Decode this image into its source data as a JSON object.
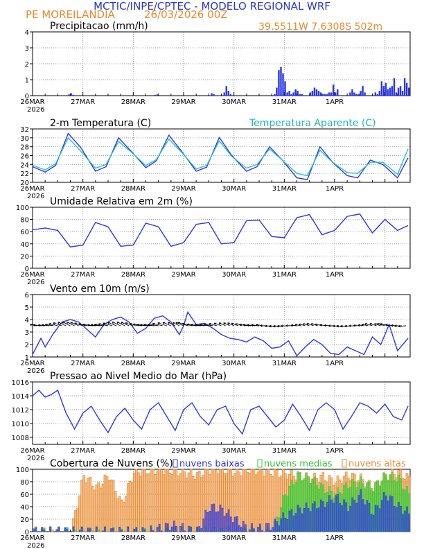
{
  "header": {
    "title": "MCTIC/INPE/CPTEC - MODELO REGIONAL WRF",
    "location": "PE MOREILANDIA",
    "run": "26/03/2026 00Z",
    "coords": "39.5511W 7.6308S 502m"
  },
  "colors": {
    "title": "#2a36c8",
    "orange": "#e8892e",
    "blue": "#2a36e8",
    "cyan": "#22c4c4",
    "green": "#33cc33",
    "grid": "#9a9a9a"
  },
  "x_axis": {
    "labels": [
      "26MAR",
      "27MAR",
      "28MAR",
      "29MAR",
      "30MAR",
      "31MAR",
      "1APR"
    ],
    "year_label": "2026"
  },
  "chart_data": [
    {
      "id": "precip",
      "type": "bar",
      "title": "Precipitacao (mm/h)",
      "ylim": [
        0,
        4
      ],
      "yticks": [
        0,
        1,
        2,
        3,
        4
      ],
      "hours": [
        17,
        18,
        19,
        58,
        59,
        85,
        86,
        91,
        92,
        93,
        94,
        115,
        116,
        117,
        118,
        119,
        120,
        121,
        122,
        123,
        124,
        125,
        126,
        127,
        128,
        132,
        133,
        134,
        135,
        136,
        137,
        138,
        139,
        140,
        141,
        142,
        143,
        144,
        145,
        151,
        152,
        153,
        154,
        155,
        156,
        157,
        158,
        163,
        164,
        165,
        166,
        167,
        168,
        169,
        170,
        171,
        172,
        173,
        174,
        175,
        176,
        177,
        178,
        179
      ],
      "values": [
        0.08,
        0.15,
        0.05,
        0.05,
        0.08,
        0.15,
        0.1,
        0.2,
        0.6,
        0.3,
        0.1,
        0.1,
        0.5,
        1.6,
        1.8,
        1.4,
        0.9,
        0.2,
        0.3,
        0.1,
        0.2,
        0.4,
        0.3,
        0.1,
        0.1,
        0.2,
        0.3,
        0.5,
        0.4,
        0.3,
        0.2,
        0.1,
        0.1,
        0.1,
        0.2,
        0.2,
        0.7,
        0.2,
        0.4,
        0.2,
        0.4,
        0.2,
        0.1,
        0.1,
        0.3,
        0.6,
        0.2,
        0.2,
        0.1,
        0.3,
        0.9,
        0.6,
        0.8,
        0.4,
        0.5,
        0.6,
        1.1,
        0.2,
        0.5,
        0.6,
        0.3,
        1.1,
        0.8,
        0.5
      ]
    },
    {
      "id": "temp",
      "type": "line",
      "title": "2-m Temperatura (C)",
      "legend_label": "Temperatura Aparente (C)",
      "ylim": [
        20,
        32
      ],
      "yticks": [
        20,
        22,
        24,
        26,
        28,
        30,
        32
      ],
      "series": [
        {
          "name": "Temperatura (C)",
          "x": [
            0,
            6,
            11,
            17,
            23,
            30,
            35,
            41,
            47,
            54,
            59,
            65,
            71,
            78,
            83,
            89,
            95,
            102,
            107,
            113,
            119,
            126,
            131,
            137,
            143,
            150,
            155,
            161,
            167,
            174,
            179
          ],
          "y": [
            23.5,
            22.3,
            23.8,
            31.0,
            27.8,
            22.5,
            23.5,
            30.0,
            27.0,
            23.3,
            24.8,
            30.6,
            27.0,
            22.5,
            23.4,
            30.1,
            26.0,
            22.5,
            23.5,
            28.0,
            25.0,
            21.0,
            20.6,
            28.0,
            24.5,
            21.5,
            21.0,
            25.0,
            24.0,
            21.0,
            25.5
          ]
        },
        {
          "name": "Temperatura Aparente (C)",
          "x": [
            0,
            6,
            11,
            17,
            23,
            30,
            35,
            41,
            47,
            54,
            59,
            65,
            71,
            78,
            83,
            89,
            95,
            102,
            107,
            113,
            119,
            126,
            131,
            137,
            143,
            150,
            155,
            161,
            167,
            174,
            179
          ],
          "y": [
            23.8,
            22.8,
            24.2,
            30.0,
            27.0,
            23.2,
            24.0,
            29.2,
            26.8,
            23.8,
            25.1,
            29.7,
            26.8,
            23.0,
            23.8,
            29.3,
            25.8,
            23.2,
            24.0,
            27.5,
            25.0,
            22.0,
            21.5,
            27.2,
            24.5,
            22.2,
            22.0,
            24.5,
            24.5,
            21.8,
            27.5
          ]
        }
      ]
    },
    {
      "id": "rh",
      "type": "line",
      "title": "Umidade Relativa em 2m (%)",
      "ylim": [
        0,
        100
      ],
      "yticks": [
        0,
        20,
        40,
        60,
        80,
        100
      ],
      "series": [
        {
          "name": "Umidade Relativa (%)",
          "x": [
            0,
            6,
            12,
            18,
            24,
            30,
            36,
            42,
            48,
            54,
            60,
            66,
            72,
            78,
            84,
            90,
            96,
            102,
            108,
            114,
            120,
            126,
            132,
            138,
            144,
            150,
            156,
            162,
            168,
            174,
            179
          ],
          "y": [
            63,
            66,
            62,
            35,
            38,
            75,
            68,
            36,
            38,
            74,
            68,
            36,
            42,
            72,
            75,
            40,
            42,
            78,
            79,
            52,
            50,
            83,
            88,
            55,
            62,
            85,
            89,
            58,
            80,
            62,
            70
          ]
        }
      ]
    },
    {
      "id": "wind",
      "type": "line",
      "title": "Vento em 10m (m/s)",
      "ylim": [
        1,
        6
      ],
      "yticks": [
        1,
        2,
        3,
        4,
        5,
        6
      ],
      "series": [
        {
          "name": "Vento em 10m (m/s)",
          "x": [
            0,
            4,
            6,
            10,
            14,
            18,
            22,
            26,
            30,
            34,
            38,
            42,
            46,
            50,
            54,
            58,
            62,
            66,
            70,
            72,
            74,
            78,
            82,
            86,
            90,
            94,
            98,
            102,
            106,
            110,
            114,
            118,
            122,
            126,
            130,
            134,
            138,
            142,
            146,
            150,
            154,
            158,
            162,
            166,
            170,
            174,
            179
          ],
          "y": [
            1.2,
            2.5,
            1.8,
            2.9,
            3.8,
            4.0,
            3.8,
            3.2,
            2.6,
            3.6,
            4.0,
            4.2,
            3.8,
            2.9,
            3.3,
            4.1,
            4.3,
            3.8,
            2.8,
            3.5,
            4.6,
            3.6,
            3.7,
            3.3,
            2.8,
            2.5,
            2.4,
            2.2,
            2.6,
            2.3,
            1.7,
            1.8,
            2.3,
            1.1,
            1.8,
            2.4,
            2.0,
            1.3,
            1.2,
            1.8,
            1.5,
            1.2,
            2.6,
            2.0,
            3.6,
            1.5,
            2.5
          ]
        }
      ]
    },
    {
      "id": "pressure",
      "type": "line",
      "title": "Pressao ao Nivel Medio do Mar (hPa)",
      "ylim": [
        1007,
        1016
      ],
      "yticks": [
        1008,
        1010,
        1012,
        1014,
        1016
      ],
      "series": [
        {
          "name": "Pressao (hPa)",
          "x": [
            0,
            3,
            6,
            9,
            12,
            16,
            20,
            24,
            28,
            32,
            36,
            40,
            44,
            48,
            52,
            56,
            60,
            64,
            68,
            72,
            76,
            80,
            84,
            88,
            92,
            96,
            100,
            104,
            108,
            112,
            116,
            120,
            124,
            128,
            132,
            136,
            140,
            144,
            148,
            152,
            156,
            160,
            164,
            168,
            172,
            176,
            179
          ],
          "y": [
            1014.0,
            1014.8,
            1013.8,
            1014.2,
            1014.8,
            1011.5,
            1009.2,
            1011.5,
            1012.5,
            1010.5,
            1008.7,
            1011.0,
            1012.2,
            1010.5,
            1009.2,
            1012.0,
            1013.0,
            1011.0,
            1009.0,
            1012.0,
            1013.0,
            1011.0,
            1009.8,
            1012.0,
            1012.5,
            1010.0,
            1008.5,
            1012.0,
            1012.5,
            1011.0,
            1009.5,
            1010.5,
            1012.8,
            1011.0,
            1009.0,
            1012.0,
            1013.0,
            1012.0,
            1009.2,
            1011.0,
            1013.0,
            1012.5,
            1011.5,
            1012.8,
            1011.0,
            1010.5,
            1012.5
          ]
        }
      ]
    },
    {
      "id": "clouds",
      "type": "bar",
      "title": "Cobertura de Nuvens (%)",
      "ylim": [
        0,
        100
      ],
      "yticks": [
        0,
        20,
        40,
        60,
        80,
        100
      ],
      "series": [
        {
          "name": "nuvens baixas",
          "x": [
            0,
            6,
            12,
            18,
            24,
            30,
            36,
            42,
            48,
            54,
            60,
            66,
            72,
            78,
            84,
            90,
            96,
            102,
            108,
            114,
            120,
            126,
            132,
            138,
            144,
            150,
            156,
            162,
            168,
            174,
            179
          ],
          "y": [
            0,
            0,
            0,
            0,
            0,
            0,
            0,
            0,
            0,
            0,
            5,
            10,
            5,
            0,
            40,
            35,
            20,
            5,
            5,
            10,
            25,
            35,
            40,
            45,
            55,
            40,
            60,
            30,
            60,
            40,
            30
          ]
        },
        {
          "name": "nuvens medias",
          "x": [
            0,
            6,
            12,
            18,
            24,
            30,
            36,
            42,
            48,
            54,
            60,
            66,
            72,
            78,
            84,
            90,
            96,
            102,
            108,
            114,
            120,
            126,
            132,
            138,
            144,
            150,
            156,
            162,
            168,
            174,
            179
          ],
          "y": [
            0,
            0,
            0,
            0,
            0,
            0,
            0,
            0,
            0,
            0,
            0,
            0,
            0,
            0,
            0,
            0,
            0,
            0,
            0,
            0,
            60,
            90,
            85,
            70,
            60,
            75,
            80,
            70,
            90,
            85,
            60
          ]
        },
        {
          "name": "nuvens altas",
          "x": [
            0,
            6,
            12,
            18,
            24,
            30,
            36,
            42,
            48,
            54,
            60,
            66,
            72,
            78,
            84,
            90,
            96,
            102,
            108,
            114,
            120,
            126,
            132,
            138,
            144,
            150,
            156,
            162,
            168,
            174,
            179
          ],
          "y": [
            0,
            0,
            0,
            0,
            90,
            70,
            90,
            45,
            95,
            98,
            100,
            98,
            95,
            90,
            100,
            100,
            95,
            100,
            98,
            95,
            92,
            90,
            85,
            88,
            80,
            90,
            85,
            70,
            90,
            95,
            85
          ]
        }
      ]
    }
  ]
}
